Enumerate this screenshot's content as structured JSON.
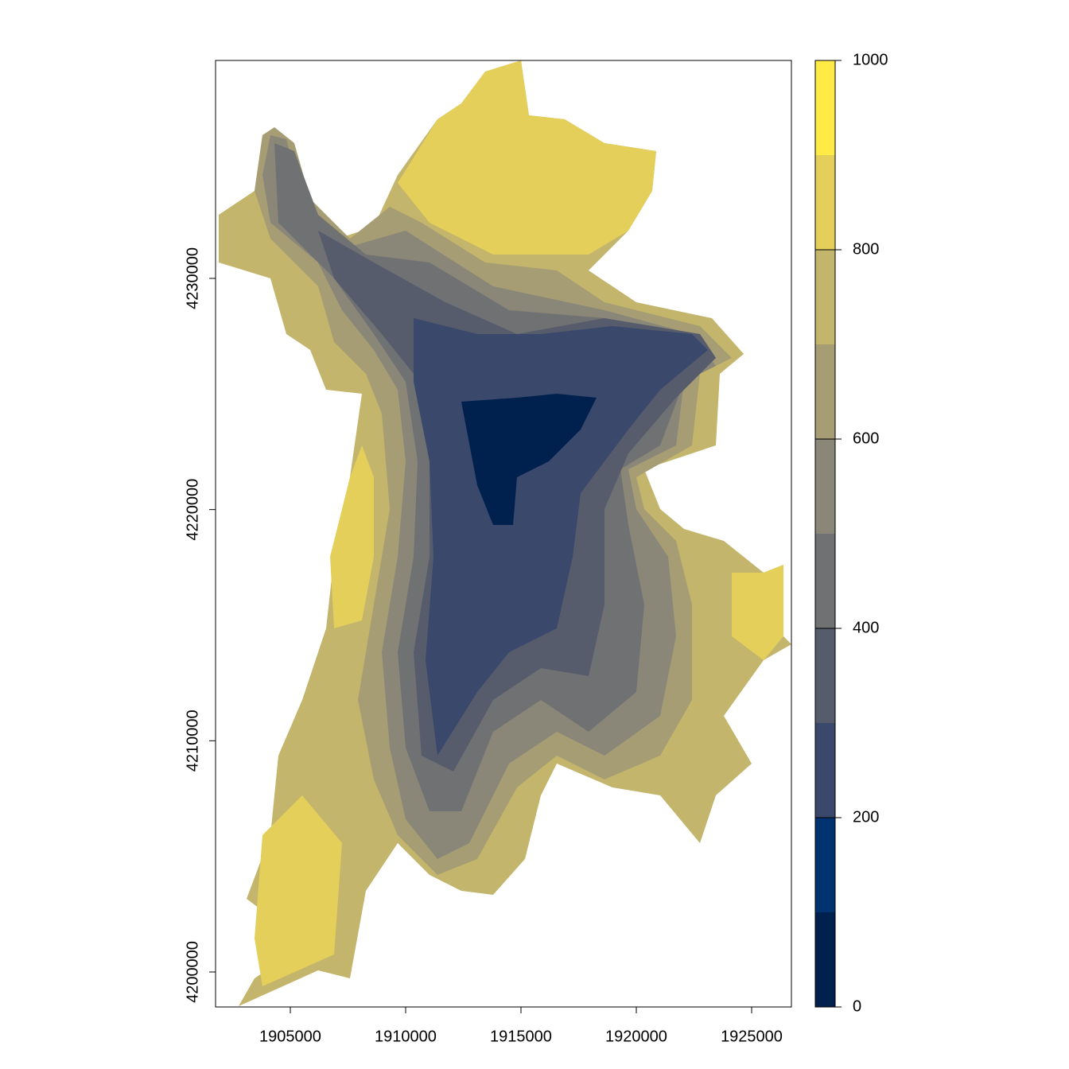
{
  "chart_data": {
    "type": "raster",
    "xlim": [
      1901759,
      1926724
    ],
    "ylim": [
      4198486,
      4239426
    ],
    "xticks": [
      1905000,
      1910000,
      1915000,
      1920000,
      1925000
    ],
    "yticks": [
      4200000,
      4210000,
      4220000,
      4230000
    ],
    "legend_lim": [
      0,
      1000
    ],
    "legend_ticks": [
      0,
      200,
      400,
      600,
      800,
      1000
    ],
    "legend_breaks": [
      0,
      100,
      200,
      300,
      400,
      500,
      600,
      700,
      800,
      900,
      1000
    ],
    "colors": [
      "#00204d",
      "#00336f",
      "#39486b",
      "#575c6d",
      "#707173",
      "#8a8779",
      "#a69d75",
      "#c4b56c",
      "#e4cf5b",
      "#ffea46"
    ]
  }
}
